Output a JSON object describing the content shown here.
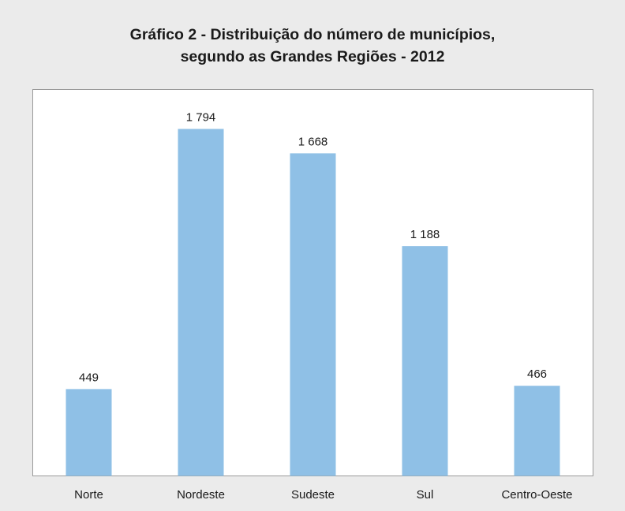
{
  "chart_data": {
    "type": "bar",
    "title": [
      "Gráfico 2 - Distribuição do número de municípios,",
      "segundo as Grandes Regiões - 2012"
    ],
    "categories": [
      "Norte",
      "Nordeste",
      "Sudeste",
      "Sul",
      "Centro-Oeste"
    ],
    "values": [
      449,
      1794,
      1668,
      1188,
      466
    ],
    "value_labels": [
      "449",
      "1 794",
      "1 668",
      "1 188",
      "466"
    ],
    "color": "#8fc0e6"
  }
}
